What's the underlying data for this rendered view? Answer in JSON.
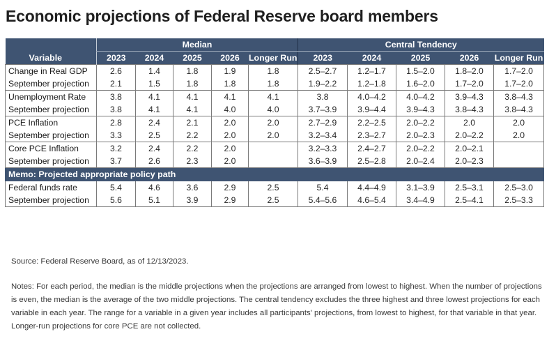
{
  "title": "Economic projections of Federal Reserve board members",
  "table": {
    "group_headers": {
      "median": "Median",
      "central_tendency": "Central Tendency"
    },
    "columns": [
      "Variable",
      "2023",
      "2024",
      "2025",
      "2026",
      "Longer Run",
      "2023",
      "2024",
      "2025",
      "2026",
      "Longer Run"
    ],
    "rows": [
      [
        "Change in Real GDP",
        "2.6",
        "1.4",
        "1.8",
        "1.9",
        "1.8",
        "2.5–2.7",
        "1.2–1.7",
        "1.5–2.0",
        "1.8–2.0",
        "1.7–2.0"
      ],
      [
        "September projection",
        "2.1",
        "1.5",
        "1.8",
        "1.8",
        "1.8",
        "1.9–2.2",
        "1.2–1.8",
        "1.6–2.0",
        "1.7–2.0",
        "1.7–2.0"
      ],
      [
        "Unemployment Rate",
        "3.8",
        "4.1",
        "4.1",
        "4.1",
        "4.1",
        "3.8",
        "4.0–4.2",
        "4.0–4.2",
        "3.9–4.3",
        "3.8–4.3"
      ],
      [
        "September projection",
        "3.8",
        "4.1",
        "4.1",
        "4.0",
        "4.0",
        "3.7–3.9",
        "3.9–4.4",
        "3.9–4.3",
        "3.8–4.3",
        "3.8–4.3"
      ],
      [
        "PCE Inflation",
        "2.8",
        "2.4",
        "2.1",
        "2.0",
        "2.0",
        "2.7–2.9",
        "2.2–2.5",
        "2.0–2.2",
        "2.0",
        "2.0"
      ],
      [
        "September projection",
        "3.3",
        "2.5",
        "2.2",
        "2.0",
        "2.0",
        "3.2–3.4",
        "2.3–2.7",
        "2.0–2.3",
        "2.0–2.2",
        "2.0"
      ],
      [
        "Core PCE Inflation",
        "3.2",
        "2.4",
        "2.2",
        "2.0",
        "",
        "3.2–3.3",
        "2.4–2.7",
        "2.0–2.2",
        "2.0–2.1",
        ""
      ],
      [
        "September projection",
        "3.7",
        "2.6",
        "2.3",
        "2.0",
        "",
        "3.6–3.9",
        "2.5–2.8",
        "2.0–2.4",
        "2.0–2.3",
        ""
      ]
    ],
    "memo_label": "Memo: Projected appropriate policy path",
    "memo_rows": [
      [
        "Federal funds rate",
        "5.4",
        "4.6",
        "3.6",
        "2.9",
        "2.5",
        "5.4",
        "4.4–4.9",
        "3.1–3.9",
        "2.5–3.1",
        "2.5–3.0"
      ],
      [
        "September projection",
        "5.6",
        "5.1",
        "3.9",
        "2.9",
        "2.5",
        "5.4–5.6",
        "4.6–5.4",
        "3.4–4.9",
        "2.5–4.1",
        "2.5–3.3"
      ]
    ]
  },
  "source": "Source: Federal Reserve Board, as of 12/13/2023.",
  "notes": "Notes: For each period, the median is the middle projections when the projections are arranged from lowest to highest. When the number of projections is even, the median is the average of the two middle projections. The central tendency excludes the three highest and three lowest projections for each variable in each year. The range for a variable in a given year includes all participants' projections, from lowest to highest, for that variable in that year. Longer-run projections for core PCE are not collected.",
  "colors": {
    "header_bg": "#3f5472",
    "header_text": "#ffffff",
    "border": "#7a7a7a"
  }
}
